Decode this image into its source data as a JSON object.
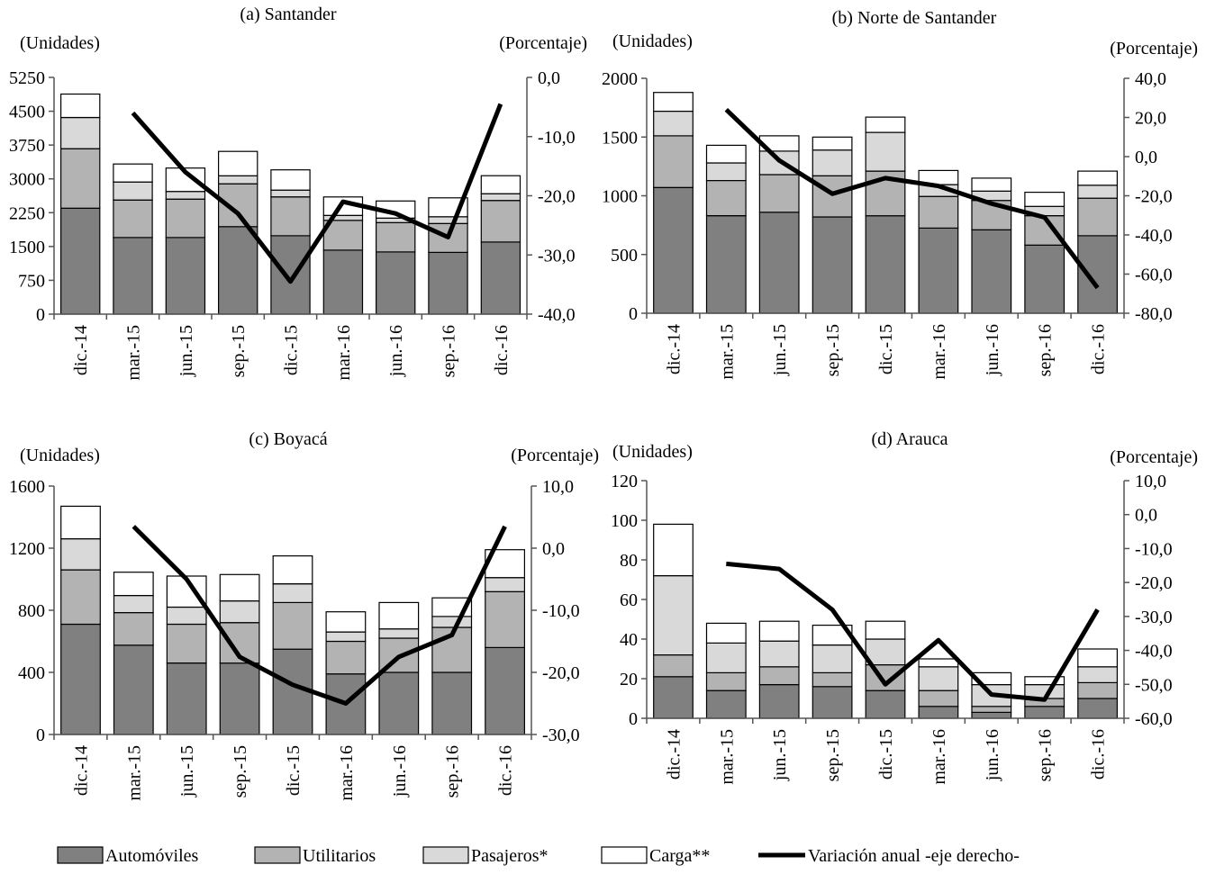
{
  "legend": {
    "items": [
      {
        "label": "Automóviles",
        "color": "#808080",
        "kind": "bar"
      },
      {
        "label": "Utilitarios",
        "color": "#b3b3b3",
        "kind": "bar"
      },
      {
        "label": "Pasajeros*",
        "color": "#d9d9d9",
        "kind": "bar"
      },
      {
        "label": "Carga**",
        "color": "#ffffff",
        "kind": "bar"
      },
      {
        "label": "Variación anual -eje derecho-",
        "color": "#000000",
        "kind": "line"
      }
    ]
  },
  "chart_data": [
    {
      "type": "bar",
      "title": "(a) Santander",
      "left_unit": "(Unidades)",
      "right_unit": "(Porcentaje)",
      "categories": [
        "dic.-14",
        "mar.-15",
        "jun.-15",
        "sep.-15",
        "dic.-15",
        "mar.-16",
        "jun.-16",
        "sep.-16",
        "dic.-16"
      ],
      "ylim": [
        0,
        5250
      ],
      "yticks": [
        "0",
        "750",
        "1500",
        "2250",
        "3000",
        "3750",
        "4500",
        "5250"
      ],
      "ytick_values": [
        0,
        750,
        1500,
        2250,
        3000,
        3750,
        4500,
        5250
      ],
      "y2lim": [
        -40,
        0
      ],
      "y2ticks": [
        "-40,0",
        "-30,0",
        "-20,0",
        "-10,0",
        "0,0"
      ],
      "y2tick_values": [
        -40,
        -30,
        -20,
        -10,
        0
      ],
      "series": [
        {
          "name": "Automóviles",
          "values": [
            2350,
            1700,
            1700,
            1940,
            1740,
            1420,
            1380,
            1370,
            1600
          ]
        },
        {
          "name": "Utilitarios",
          "values": [
            1320,
            830,
            850,
            950,
            860,
            660,
            650,
            640,
            920
          ]
        },
        {
          "name": "Pasajeros*",
          "values": [
            690,
            400,
            170,
            180,
            150,
            110,
            100,
            150,
            150
          ]
        },
        {
          "name": "Carga**",
          "values": [
            520,
            400,
            520,
            540,
            450,
            410,
            380,
            420,
            400
          ]
        }
      ],
      "line": {
        "name": "Variación anual -eje derecho-",
        "values": [
          null,
          -6,
          -16,
          -23,
          -34.5,
          -21,
          -23,
          -27,
          -4.5
        ]
      }
    },
    {
      "type": "bar",
      "title": "(b) Norte de Santander",
      "left_unit": "(Unidades)",
      "right_unit": "(Porcentaje)",
      "categories": [
        "dic.-14",
        "mar.-15",
        "jun.-15",
        "sep.-15",
        "dic.-15",
        "mar.-16",
        "jun.-16",
        "sep.-16",
        "dic.-16"
      ],
      "ylim": [
        0,
        2000
      ],
      "yticks": [
        "0",
        "500",
        "1000",
        "1500",
        "2000"
      ],
      "ytick_values": [
        0,
        500,
        1000,
        1500,
        2000
      ],
      "y2lim": [
        -80,
        40
      ],
      "y2ticks": [
        "-80,0",
        "-60,0",
        "-40,0",
        "-20,0",
        "0,0",
        "20,0",
        "40,0"
      ],
      "y2tick_values": [
        -80,
        -60,
        -40,
        -20,
        0,
        20,
        40
      ],
      "series": [
        {
          "name": "Automóviles",
          "values": [
            1070,
            830,
            860,
            820,
            830,
            725,
            710,
            580,
            660
          ]
        },
        {
          "name": "Utilitarios",
          "values": [
            440,
            300,
            320,
            350,
            380,
            270,
            250,
            250,
            320
          ]
        },
        {
          "name": "Pasajeros*",
          "values": [
            210,
            150,
            200,
            220,
            330,
            100,
            80,
            80,
            110
          ]
        },
        {
          "name": "Carga**",
          "values": [
            160,
            150,
            130,
            110,
            130,
            120,
            110,
            120,
            120
          ]
        }
      ],
      "line": {
        "name": "Variación anual -eje derecho-",
        "values": [
          null,
          24,
          -2,
          -19,
          -11,
          -15,
          -24,
          -31,
          -67
        ]
      }
    },
    {
      "type": "bar",
      "title": "(c) Boyacá",
      "left_unit": "(Unidades)",
      "right_unit": "(Porcentaje)",
      "categories": [
        "dic.-14",
        "mar.-15",
        "jun.-15",
        "sep.-15",
        "dic.-15",
        "mar.-16",
        "jun.-16",
        "sep.-16",
        "dic.-16"
      ],
      "ylim": [
        0,
        1600
      ],
      "yticks": [
        "0",
        "400",
        "800",
        "1200",
        "1600"
      ],
      "ytick_values": [
        0,
        400,
        800,
        1200,
        1600
      ],
      "y2lim": [
        -30,
        10
      ],
      "y2ticks": [
        "-30,0",
        "-20,0",
        "-10,0",
        "0,0",
        "10,0"
      ],
      "y2tick_values": [
        -30,
        -20,
        -10,
        0,
        10
      ],
      "series": [
        {
          "name": "Automóviles",
          "values": [
            710,
            575,
            460,
            460,
            550,
            390,
            400,
            400,
            560
          ]
        },
        {
          "name": "Utilitarios",
          "values": [
            350,
            210,
            250,
            260,
            300,
            210,
            220,
            290,
            360
          ]
        },
        {
          "name": "Pasajeros*",
          "values": [
            200,
            110,
            110,
            140,
            120,
            60,
            60,
            70,
            90
          ]
        },
        {
          "name": "Carga**",
          "values": [
            210,
            150,
            200,
            170,
            180,
            130,
            170,
            120,
            180
          ]
        }
      ],
      "line": {
        "name": "Variación anual -eje derecho-",
        "values": [
          null,
          3.5,
          -5,
          -17.5,
          -22,
          -25,
          -17.5,
          -14,
          3.5
        ]
      }
    },
    {
      "type": "bar",
      "title": "(d) Arauca",
      "left_unit": "(Unidades)",
      "right_unit": "(Porcentaje)",
      "categories": [
        "dic.-14",
        "mar.-15",
        "jun.-15",
        "sep.-15",
        "dic.-15",
        "mar.-16",
        "jun.-16",
        "sep.-16",
        "dic.-16"
      ],
      "ylim": [
        0,
        120
      ],
      "yticks": [
        "0",
        "20",
        "40",
        "60",
        "80",
        "100",
        "120"
      ],
      "ytick_values": [
        0,
        20,
        40,
        60,
        80,
        100,
        120
      ],
      "y2lim": [
        -60,
        10
      ],
      "y2ticks": [
        "-60,0",
        "-50,0",
        "-40,0",
        "-30,0",
        "-20,0",
        "-10,0",
        "0,0",
        "10,0"
      ],
      "y2tick_values": [
        -60,
        -50,
        -40,
        -30,
        -20,
        -10,
        0,
        10
      ],
      "series": [
        {
          "name": "Automóviles",
          "values": [
            21,
            14,
            17,
            16,
            14,
            6,
            3,
            6,
            10
          ]
        },
        {
          "name": "Utilitarios",
          "values": [
            11,
            9,
            9,
            7,
            13,
            8,
            3,
            4,
            8
          ]
        },
        {
          "name": "Pasajeros*",
          "values": [
            40,
            15,
            13,
            14,
            13,
            12,
            11,
            7,
            8
          ]
        },
        {
          "name": "Carga**",
          "values": [
            26,
            10,
            10,
            10,
            9,
            4,
            6,
            4,
            9
          ]
        }
      ],
      "line": {
        "name": "Variación anual -eje derecho-",
        "values": [
          null,
          -14.5,
          -16,
          -28,
          -50,
          -37,
          -53,
          -54.5,
          -28
        ]
      }
    }
  ]
}
